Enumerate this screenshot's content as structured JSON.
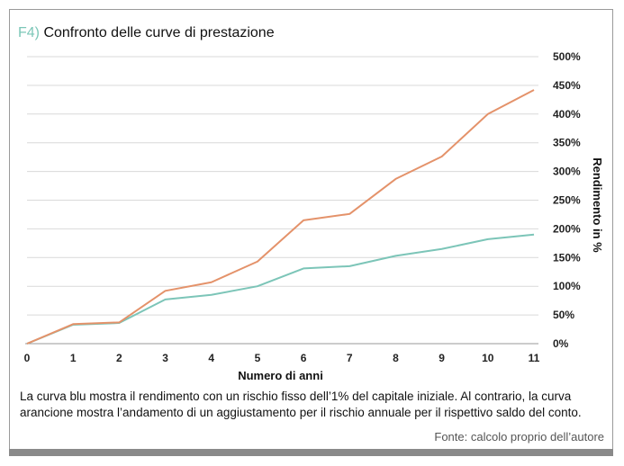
{
  "header": {
    "figure_label": "F4)",
    "title": "Confronto delle curve di prestazione"
  },
  "chart_data": {
    "type": "line",
    "x": [
      0,
      1,
      2,
      3,
      4,
      5,
      6,
      7,
      8,
      9,
      10,
      11
    ],
    "xlabel": "Numero di anni",
    "ylabel": "Rendimento in %",
    "xlim": [
      0,
      11
    ],
    "ylim": [
      0,
      500
    ],
    "y_ticks": [
      "0%",
      "50%",
      "100%",
      "150%",
      "200%",
      "250%",
      "300%",
      "350%",
      "400%",
      "450%",
      "500%"
    ],
    "x_ticks": [
      "0",
      "1",
      "2",
      "3",
      "4",
      "5",
      "6",
      "7",
      "8",
      "9",
      "10",
      "11"
    ],
    "grid": "horizontal",
    "series": [
      {
        "color": "#7cc5b8",
        "values": [
          0,
          33,
          36,
          77,
          85,
          100,
          131,
          135,
          153,
          165,
          182,
          190
        ]
      },
      {
        "color": "#e4926a",
        "values": [
          0,
          34,
          37,
          92,
          107,
          143,
          215,
          226,
          287,
          326,
          400,
          442
        ]
      }
    ]
  },
  "caption": "La curva blu mostra il rendimento con un rischio fisso dell’1% del capitale iniziale. Al contrario, la curva arancione mostra l’andamento di un aggiustamento per il rischio annuale per il rispettivo saldo del conto.",
  "source": "Fonte: calcolo proprio dell’autore"
}
